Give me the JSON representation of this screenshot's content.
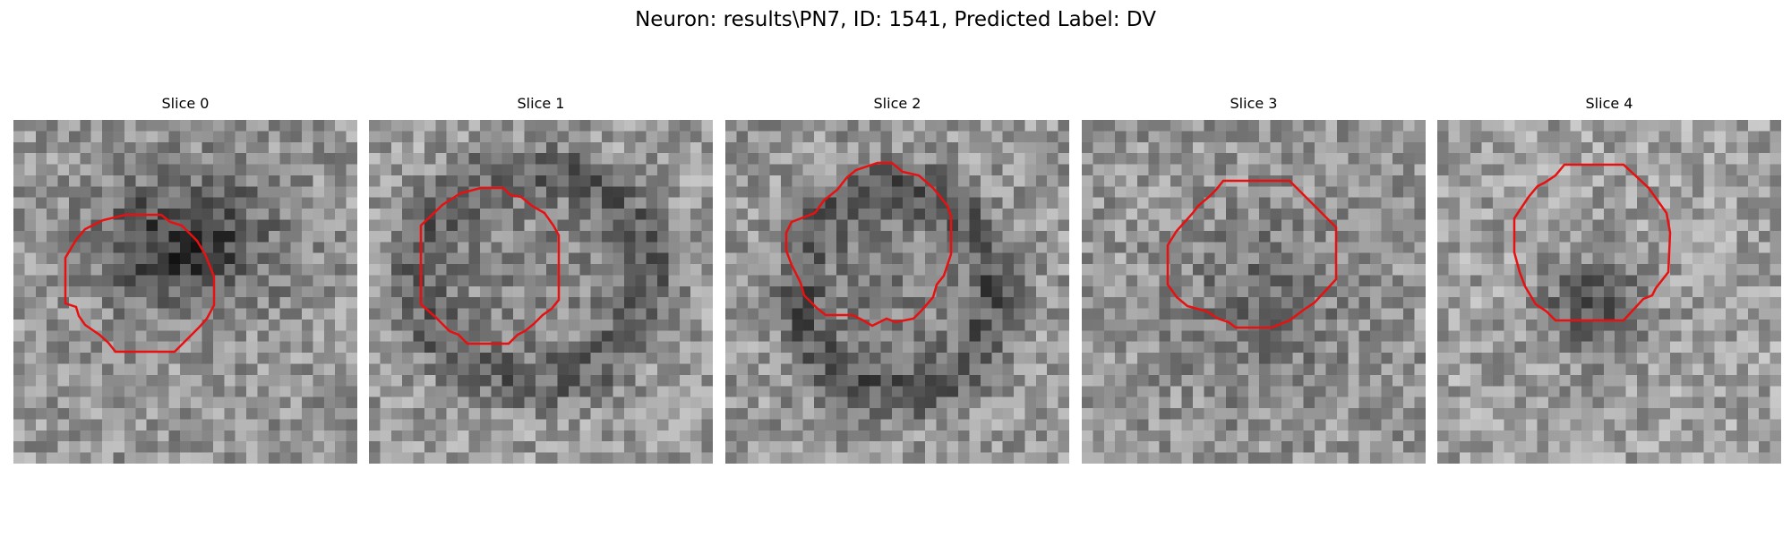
{
  "figure": {
    "title": "Neuron: results\\PN7, ID: 1541, Predicted Label: DV",
    "outline_color": "#e81010"
  },
  "panels": [
    {
      "title": "Slice 0",
      "contour": "polygon outlining lower-left cell region"
    },
    {
      "title": "Slice 1",
      "contour": "polygon outlining nucleus"
    },
    {
      "title": "Slice 2",
      "contour": "polygon outlining nucleus"
    },
    {
      "title": "Slice 3",
      "contour": "polygon outlining nucleus"
    },
    {
      "title": "Slice 4",
      "contour": "polygon outlining cell"
    }
  ]
}
